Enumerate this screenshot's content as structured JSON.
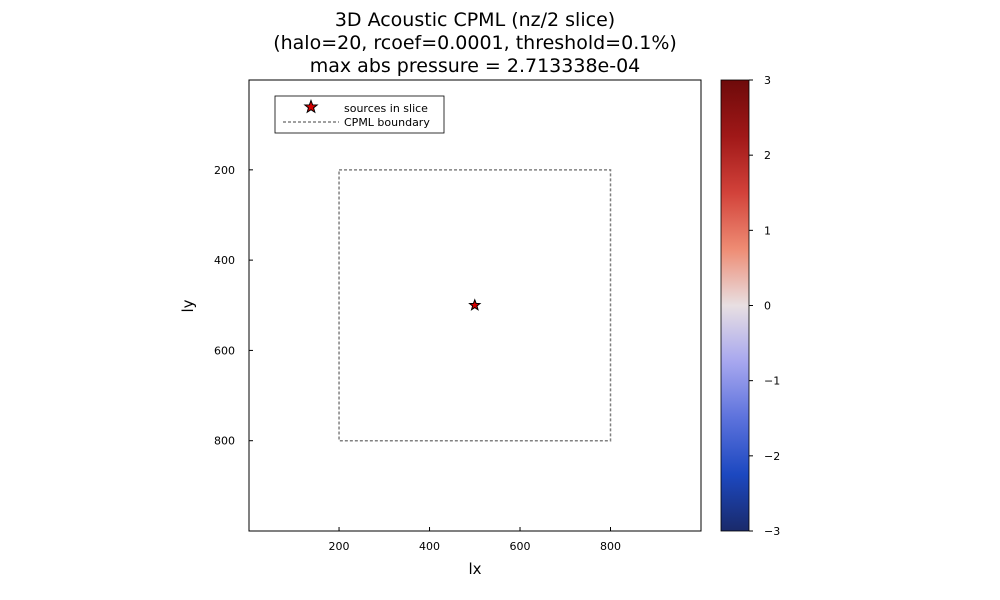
{
  "chart_data": {
    "type": "heatmap",
    "title_lines": [
      "3D Acoustic CPML (nz/2 slice)",
      "(halo=20, rcoef=0.0001, threshold=0.1%)",
      "max abs pressure = 2.713338e-04"
    ],
    "xlabel": "lx",
    "ylabel": "ly",
    "xlim": [
      1,
      1000
    ],
    "ylim": [
      1,
      1000
    ],
    "y_inverted": true,
    "x_ticks": [
      200,
      400,
      600,
      800
    ],
    "y_ticks": [
      200,
      400,
      600,
      800
    ],
    "grid": false,
    "field_value": 0,
    "colorbar": {
      "colormap": "balance",
      "range": [
        -3,
        3
      ],
      "ticks": [
        "3",
        "2",
        "1",
        "0",
        "−1",
        "−2",
        "−3"
      ],
      "colors": [
        "#6e0a0a",
        "#a01818",
        "#d2423a",
        "#ee8c74",
        "#e8dfe2",
        "#a7a7ef",
        "#5c72dc",
        "#1c48c0",
        "#1a2a6a"
      ]
    },
    "cpml_boundary": {
      "x": [
        200,
        800
      ],
      "y": [
        200,
        800
      ],
      "color": "#808080",
      "style": "dashed"
    },
    "sources": [
      {
        "x": 500,
        "y": 500,
        "color": "#d40000",
        "marker": "star"
      }
    ],
    "legend": {
      "placement": "top-left",
      "entries": [
        {
          "label": "sources in slice",
          "marker": "star"
        },
        {
          "label": "CPML boundary",
          "marker": "dashed-line"
        }
      ]
    }
  }
}
